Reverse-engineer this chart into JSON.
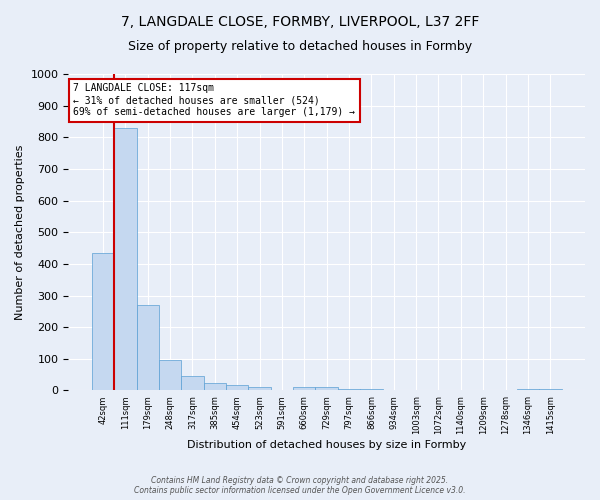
{
  "title_line1": "7, LANGDALE CLOSE, FORMBY, LIVERPOOL, L37 2FF",
  "title_line2": "Size of property relative to detached houses in Formby",
  "xlabel": "Distribution of detached houses by size in Formby",
  "ylabel": "Number of detached properties",
  "bar_labels": [
    "42sqm",
    "111sqm",
    "179sqm",
    "248sqm",
    "317sqm",
    "385sqm",
    "454sqm",
    "523sqm",
    "591sqm",
    "660sqm",
    "729sqm",
    "797sqm",
    "866sqm",
    "934sqm",
    "1003sqm",
    "1072sqm",
    "1140sqm",
    "1209sqm",
    "1278sqm",
    "1346sqm",
    "1415sqm"
  ],
  "bar_values": [
    435,
    830,
    270,
    95,
    45,
    22,
    17,
    10,
    0,
    10,
    10,
    5,
    5,
    0,
    0,
    0,
    0,
    0,
    0,
    5,
    5
  ],
  "bar_color": "#c5d8f0",
  "bar_edge_color": "#5a9fd4",
  "vline_x_index": 1,
  "vline_color": "#cc0000",
  "annotation_text": "7 LANGDALE CLOSE: 117sqm\n← 31% of detached houses are smaller (524)\n69% of semi-detached houses are larger (1,179) →",
  "annotation_box_color": "#cc0000",
  "annotation_text_color": "#000000",
  "ylim": [
    0,
    1000
  ],
  "yticks": [
    0,
    100,
    200,
    300,
    400,
    500,
    600,
    700,
    800,
    900,
    1000
  ],
  "background_color": "#e8eef8",
  "grid_color": "#ffffff",
  "footer": "Contains HM Land Registry data © Crown copyright and database right 2025.\nContains public sector information licensed under the Open Government Licence v3.0.",
  "title_fontsize": 10,
  "subtitle_fontsize": 9,
  "figsize": [
    6.0,
    5.0
  ],
  "dpi": 100
}
